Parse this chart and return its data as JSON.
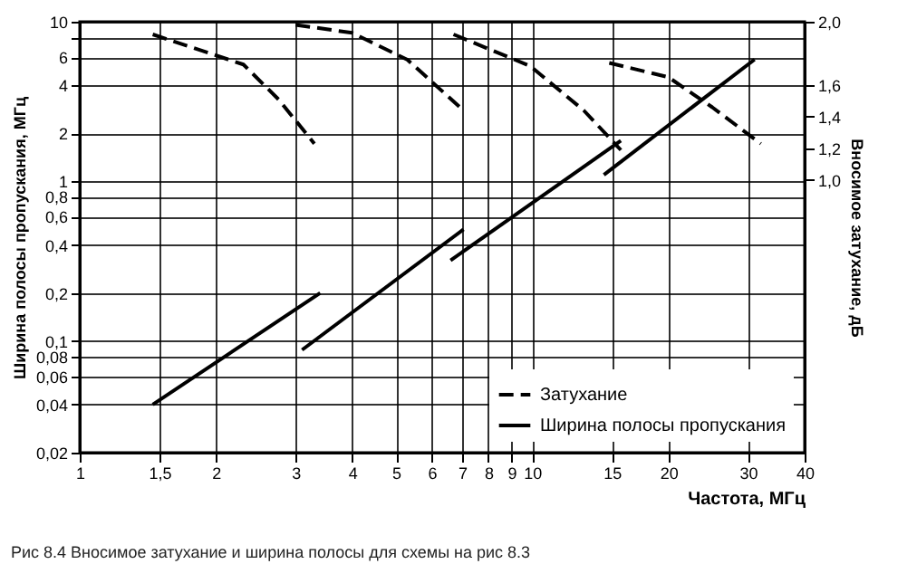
{
  "chart_data": {
    "type": "line",
    "xlabel": "Частота, МГц",
    "ylabel": "Ширина полосы пропускания, МГц",
    "y2label": "Вносимое затухание, дБ",
    "annotations": [
      "Рис 8.4 Вносимое затухание и ширина полосы для схемы на рис 8.3"
    ],
    "xlim": [
      1,
      40
    ],
    "xticks": [
      1,
      {
        "value": 1.5,
        "label": "1,5"
      },
      2,
      3,
      4,
      5,
      6,
      7,
      8,
      9,
      10,
      15,
      20,
      30,
      40
    ],
    "ylim": [
      0.02,
      10
    ],
    "yticks": [
      {
        "value": 0.02,
        "label": "0,02"
      },
      {
        "value": 0.04,
        "label": "0,04"
      },
      {
        "value": 0.06,
        "label": "0,06"
      },
      {
        "value": 0.08,
        "label": "0,08"
      },
      {
        "value": 0.1,
        "label": "0,1"
      },
      {
        "value": 0.2,
        "label": "0,2"
      },
      {
        "value": 0.4,
        "label": "0,4"
      },
      {
        "value": 0.6,
        "label": "0,6"
      },
      {
        "value": 0.8,
        "label": "0,8"
      },
      1,
      2,
      4,
      6,
      {
        "value": 8,
        "label": null
      },
      10
    ],
    "y2lim": [
      -0.72,
      2
    ],
    "y2ticks": [
      {
        "value": 1,
        "label": "1,0"
      },
      {
        "value": 1.2,
        "label": "1,2"
      },
      {
        "value": 1.4,
        "label": "1,4"
      },
      {
        "value": 1.6,
        "label": "1,6"
      },
      {
        "value": 2,
        "label": "2,0"
      }
    ],
    "log": "xy",
    "grid": true,
    "legend": "bottom right",
    "series": [
      {
        "name": "Затухание",
        "type": "line",
        "axis": "y2",
        "line_style": "dashed",
        "color": "#000000",
        "x": [
          1.45,
          2.3,
          2.75,
          3.3
        ],
        "values": [
          1.92,
          1.73,
          1.51,
          1.23
        ]
      },
      {
        "type": "line",
        "axis": "y2",
        "line_style": "dashed",
        "color": "#000000",
        "x": [
          3.0,
          4.0,
          5.3,
          7.05
        ],
        "values": [
          1.98,
          1.93,
          1.76,
          1.44
        ]
      },
      {
        "type": "line",
        "axis": "y2",
        "line_style": "dashed",
        "color": "#000000",
        "x": [
          6.7,
          9.9,
          13,
          15.7
        ],
        "values": [
          1.92,
          1.72,
          1.44,
          1.19
        ]
      },
      {
        "type": "line",
        "axis": "y2",
        "line_style": "dashed",
        "color": "#000000",
        "x": [
          14.8,
          20,
          25,
          32
        ],
        "values": [
          1.74,
          1.65,
          1.46,
          1.23
        ]
      },
      {
        "name": "Ширина полосы пропускания",
        "type": "line",
        "line_style": "solid",
        "color": "#000000",
        "x": [
          1.45,
          3.4
        ],
        "values": [
          0.04,
          0.2
        ]
      },
      {
        "type": "line",
        "line_style": "solid",
        "color": "#000000",
        "x": [
          3.1,
          7.05
        ],
        "values": [
          0.088,
          0.5
        ]
      },
      {
        "type": "line",
        "line_style": "solid",
        "color": "#000000",
        "x": [
          6.6,
          15.7
        ],
        "values": [
          0.32,
          1.8
        ]
      },
      {
        "type": "line",
        "line_style": "solid",
        "color": "#000000",
        "x": [
          14.4,
          31
        ],
        "values": [
          1.1,
          5.8
        ]
      }
    ]
  }
}
